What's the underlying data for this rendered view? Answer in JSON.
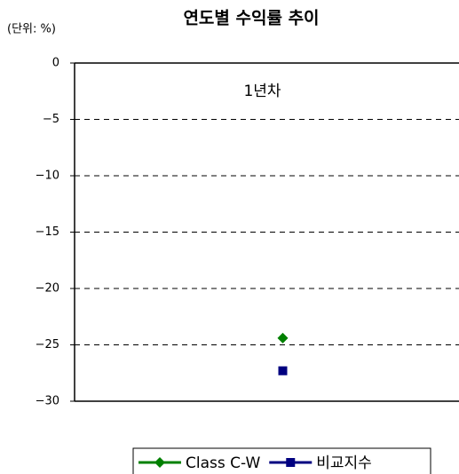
{
  "chart_data": {
    "type": "line",
    "title": "연도별 수익률 추이",
    "unit_label": "(단위: %)",
    "categories": [
      "1년차"
    ],
    "series": [
      {
        "name": "Class C-W",
        "color": "#008000",
        "marker": "diamond",
        "values": [
          -24.4
        ]
      },
      {
        "name": "비교지수",
        "color": "#000080",
        "marker": "square",
        "values": [
          -27.3
        ]
      }
    ],
    "ylim": [
      -30,
      0
    ],
    "yticks": [
      0,
      {
        "value": -5,
        "label": "−5"
      },
      {
        "value": -10,
        "label": "−10"
      },
      {
        "value": -15,
        "label": "−15"
      },
      {
        "value": -20,
        "label": "−20"
      },
      {
        "value": -25,
        "label": "−25"
      },
      {
        "value": -30,
        "label": "−30"
      }
    ],
    "grid": true,
    "legend": "bottom"
  }
}
